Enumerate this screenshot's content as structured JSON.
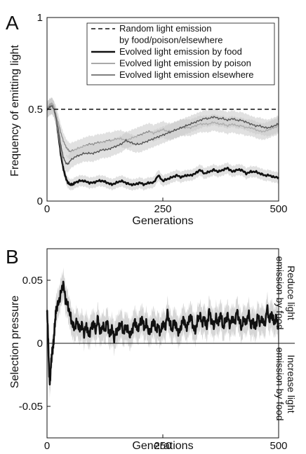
{
  "chart_data": [
    {
      "panel_label": "A",
      "type": "line",
      "xlabel": "Generations",
      "ylabel": "Frequency of emitting light",
      "xlim": [
        0,
        500
      ],
      "ylim": [
        0,
        1
      ],
      "xticks": [
        0,
        250,
        500
      ],
      "xtick_labels": [
        "0",
        "250",
        "500"
      ],
      "yticks": [
        0,
        0.5,
        1
      ],
      "ytick_labels": [
        "0",
        "0.5",
        "1"
      ],
      "legend_position": "top-right",
      "grid": false,
      "legend": [
        {
          "text": "Random light emission",
          "style": "dashed",
          "color": "#111111"
        },
        {
          "text": "by food/poison/elsewhere",
          "style": "none",
          "color": "#111111"
        },
        {
          "text": "Evolved light emission by food",
          "style": "solid-thick",
          "color": "#111111"
        },
        {
          "text": "Evolved light emission by poison",
          "style": "solid",
          "color": "#8c8c8c"
        },
        {
          "text": "Evolved light emission elsewhere",
          "style": "solid",
          "color": "#555555"
        }
      ],
      "series": [
        {
          "name": "Random light emission by food/poison/elsewhere",
          "color": "#111111",
          "dashed": true,
          "x": [
            0,
            500
          ],
          "y": [
            0.5,
            0.5
          ]
        },
        {
          "name": "Evolved light emission by food",
          "color": "#111111",
          "band_width": 0.03,
          "x": [
            0,
            5,
            10,
            15,
            20,
            25,
            30,
            35,
            40,
            45,
            50,
            55,
            60,
            70,
            80,
            90,
            100,
            110,
            120,
            130,
            140,
            150,
            160,
            170,
            180,
            190,
            200,
            210,
            220,
            230,
            240,
            250,
            260,
            270,
            280,
            290,
            300,
            310,
            320,
            330,
            340,
            350,
            360,
            370,
            380,
            390,
            400,
            410,
            420,
            430,
            440,
            450,
            460,
            470,
            480,
            490,
            500
          ],
          "y": [
            0.5,
            0.52,
            0.53,
            0.51,
            0.44,
            0.35,
            0.25,
            0.18,
            0.13,
            0.1,
            0.09,
            0.09,
            0.1,
            0.11,
            0.11,
            0.1,
            0.1,
            0.11,
            0.11,
            0.1,
            0.09,
            0.1,
            0.11,
            0.1,
            0.09,
            0.09,
            0.1,
            0.09,
            0.1,
            0.1,
            0.14,
            0.11,
            0.12,
            0.13,
            0.14,
            0.13,
            0.14,
            0.14,
            0.15,
            0.17,
            0.15,
            0.16,
            0.17,
            0.16,
            0.17,
            0.18,
            0.16,
            0.17,
            0.17,
            0.15,
            0.16,
            0.16,
            0.15,
            0.14,
            0.14,
            0.13,
            0.13
          ]
        },
        {
          "name": "Evolved light emission by poison",
          "color": "#8c8c8c",
          "band_width": 0.045,
          "x": [
            0,
            5,
            10,
            15,
            20,
            25,
            30,
            35,
            40,
            45,
            50,
            60,
            70,
            80,
            90,
            100,
            110,
            120,
            130,
            140,
            150,
            160,
            170,
            180,
            190,
            200,
            210,
            220,
            230,
            240,
            250,
            260,
            270,
            280,
            290,
            300,
            310,
            320,
            330,
            340,
            350,
            360,
            370,
            380,
            390,
            400,
            410,
            420,
            430,
            440,
            450,
            460,
            470,
            480,
            490,
            500
          ],
          "y": [
            0.5,
            0.51,
            0.52,
            0.5,
            0.47,
            0.42,
            0.37,
            0.33,
            0.3,
            0.28,
            0.27,
            0.28,
            0.29,
            0.3,
            0.31,
            0.31,
            0.32,
            0.32,
            0.33,
            0.33,
            0.34,
            0.34,
            0.33,
            0.34,
            0.35,
            0.36,
            0.37,
            0.38,
            0.37,
            0.38,
            0.39,
            0.38,
            0.38,
            0.39,
            0.4,
            0.4,
            0.4,
            0.41,
            0.42,
            0.42,
            0.42,
            0.43,
            0.42,
            0.42,
            0.41,
            0.42,
            0.41,
            0.41,
            0.4,
            0.4,
            0.39,
            0.38,
            0.38,
            0.39,
            0.4,
            0.41
          ]
        },
        {
          "name": "Evolved light emission elsewhere",
          "color": "#555555",
          "band_width": 0.045,
          "x": [
            0,
            5,
            10,
            15,
            20,
            25,
            30,
            35,
            40,
            45,
            50,
            60,
            70,
            80,
            90,
            100,
            110,
            120,
            130,
            140,
            150,
            160,
            170,
            180,
            190,
            200,
            210,
            220,
            230,
            240,
            250,
            260,
            270,
            280,
            290,
            300,
            310,
            320,
            330,
            340,
            350,
            360,
            370,
            380,
            390,
            400,
            410,
            420,
            430,
            440,
            450,
            460,
            470,
            480,
            490,
            500
          ],
          "y": [
            0.5,
            0.51,
            0.52,
            0.5,
            0.45,
            0.38,
            0.3,
            0.24,
            0.21,
            0.2,
            0.22,
            0.24,
            0.25,
            0.26,
            0.26,
            0.26,
            0.27,
            0.28,
            0.28,
            0.29,
            0.3,
            0.31,
            0.33,
            0.32,
            0.31,
            0.31,
            0.32,
            0.33,
            0.34,
            0.35,
            0.36,
            0.37,
            0.38,
            0.39,
            0.4,
            0.41,
            0.42,
            0.43,
            0.44,
            0.45,
            0.45,
            0.46,
            0.45,
            0.45,
            0.44,
            0.45,
            0.44,
            0.44,
            0.43,
            0.42,
            0.41,
            0.41,
            0.4,
            0.4,
            0.41,
            0.42
          ]
        }
      ]
    },
    {
      "panel_label": "B",
      "type": "line",
      "xlabel": "Generations",
      "ylabel": "Selection pressure",
      "xlim": [
        0,
        500
      ],
      "ylim": [
        -0.075,
        0.075
      ],
      "xticks": [
        0,
        250,
        500
      ],
      "xtick_labels": [
        "0",
        "250",
        "500"
      ],
      "yticks": [
        -0.05,
        0,
        0.05
      ],
      "ytick_labels": [
        "-0.05",
        "0",
        "0.05"
      ],
      "zero_line": true,
      "grid": false,
      "right_annotations": [
        {
          "lines": [
            "Reduce light",
            "emission by food"
          ],
          "position": "upper-right"
        },
        {
          "lines": [
            "Increase light",
            "emission by food"
          ],
          "position": "lower-right"
        }
      ],
      "series": [
        {
          "name": "Selection pressure on light emission by food",
          "color": "#111111",
          "band_color": "#b5b5b5",
          "band_width": 0.011,
          "x": [
            0,
            2,
            4,
            6,
            8,
            10,
            12,
            14,
            16,
            18,
            20,
            25,
            30,
            35,
            40,
            45,
            50,
            55,
            60,
            65,
            70,
            75,
            80,
            85,
            90,
            95,
            100,
            105,
            110,
            115,
            120,
            125,
            130,
            135,
            140,
            145,
            150,
            155,
            160,
            165,
            170,
            175,
            180,
            185,
            190,
            195,
            200,
            205,
            210,
            215,
            220,
            225,
            230,
            235,
            240,
            245,
            250,
            255,
            260,
            265,
            270,
            275,
            280,
            285,
            290,
            295,
            300,
            305,
            310,
            315,
            320,
            325,
            330,
            335,
            340,
            345,
            350,
            355,
            360,
            365,
            370,
            375,
            380,
            385,
            390,
            395,
            400,
            405,
            410,
            415,
            420,
            425,
            430,
            435,
            440,
            445,
            450,
            455,
            460,
            465,
            470,
            475,
            480,
            485,
            490,
            495,
            500
          ],
          "y": [
            0.025,
            0.01,
            -0.018,
            -0.032,
            -0.02,
            -0.01,
            -0.005,
            0.0,
            0.01,
            0.02,
            0.028,
            0.032,
            0.04,
            0.047,
            0.035,
            0.03,
            0.022,
            0.015,
            0.012,
            0.018,
            0.01,
            0.015,
            0.008,
            0.014,
            0.006,
            0.012,
            0.016,
            0.01,
            0.02,
            0.008,
            0.014,
            0.01,
            0.018,
            0.006,
            0.012,
            0.004,
            0.01,
            0.012,
            0.016,
            0.008,
            0.014,
            0.01,
            0.006,
            0.012,
            0.018,
            0.01,
            0.015,
            0.02,
            0.012,
            0.016,
            0.008,
            0.012,
            0.018,
            0.01,
            0.014,
            0.008,
            0.016,
            0.012,
            0.024,
            0.016,
            0.01,
            0.018,
            0.012,
            0.008,
            0.014,
            0.02,
            0.012,
            0.016,
            0.022,
            0.014,
            0.01,
            0.018,
            0.022,
            0.016,
            0.02,
            0.012,
            0.026,
            0.018,
            0.014,
            0.02,
            0.016,
            0.024,
            0.012,
            0.018,
            0.022,
            0.014,
            0.02,
            0.016,
            0.026,
            0.018,
            0.012,
            0.02,
            0.016,
            0.024,
            0.014,
            0.018,
            0.012,
            0.022,
            0.016,
            0.02,
            0.014,
            0.028,
            0.018,
            0.024,
            0.016,
            0.02,
            0.014
          ]
        }
      ]
    }
  ]
}
